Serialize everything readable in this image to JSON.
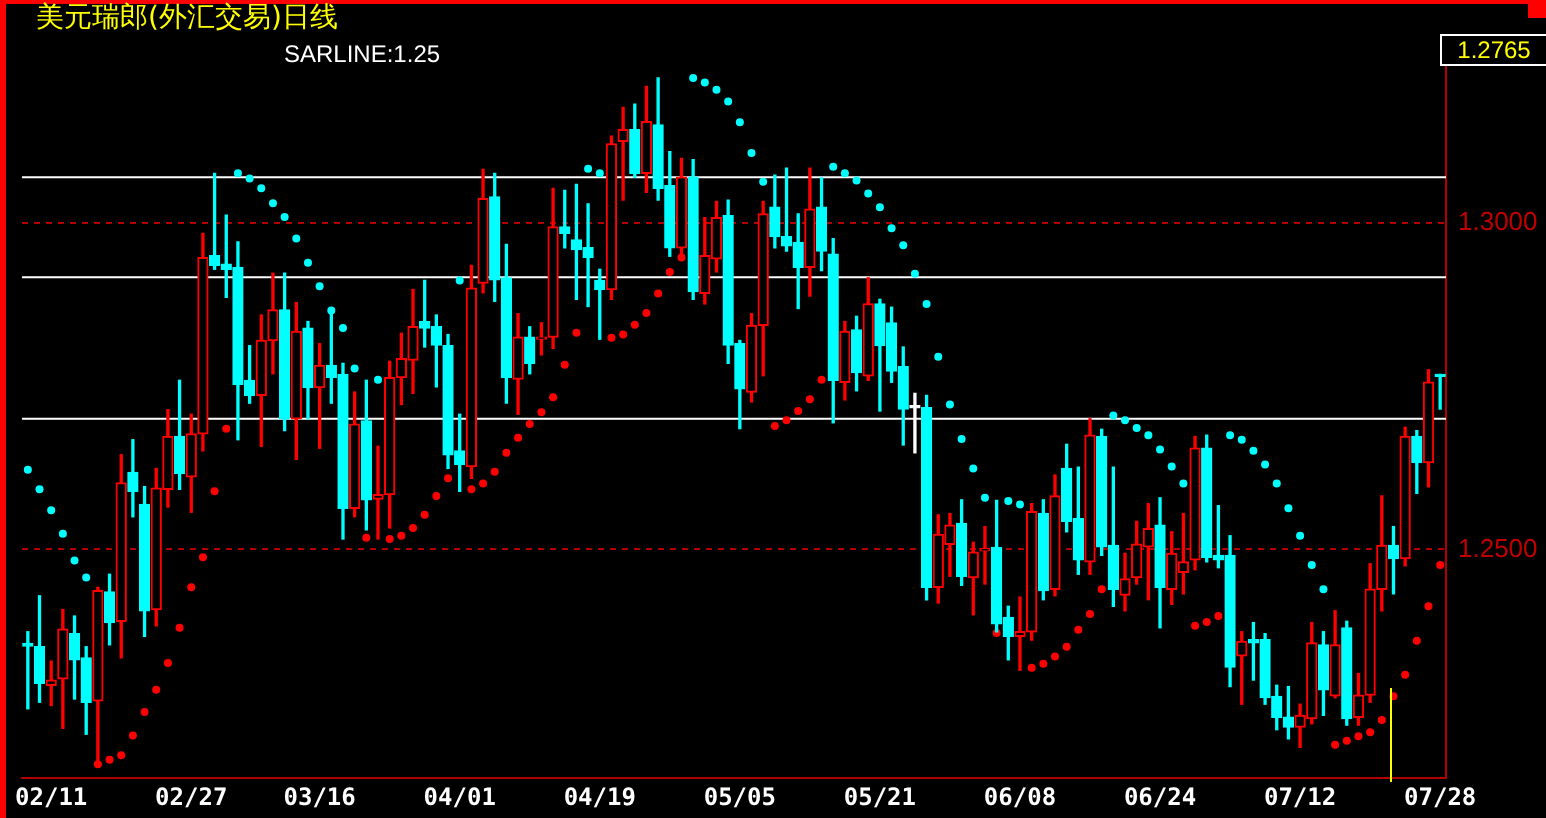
{
  "chart_data": {
    "type": "candlestick",
    "title": "美元瑞郎(外汇交易)日线",
    "categories": [
      null,
      null,
      "02/11",
      null,
      null,
      null,
      null,
      null,
      null,
      null,
      null,
      null,
      null,
      null,
      "02/27",
      null,
      null,
      null,
      null,
      null,
      null,
      null,
      null,
      null,
      null,
      "03/16",
      null,
      null,
      null,
      null,
      null,
      null,
      null,
      null,
      null,
      null,
      null,
      "04/01",
      null,
      null,
      null,
      null,
      null,
      null,
      null,
      null,
      null,
      null,
      null,
      "04/19",
      null,
      null,
      null,
      null,
      null,
      null,
      null,
      null,
      null,
      null,
      null,
      "05/05",
      null,
      null,
      null,
      null,
      null,
      null,
      null,
      null,
      null,
      null,
      null,
      "05/21",
      null,
      null,
      null,
      null,
      null,
      null,
      null,
      null,
      null,
      null,
      null,
      "06/08",
      null,
      null,
      null,
      null,
      null,
      null,
      null,
      null,
      null,
      null,
      null,
      "06/24",
      null,
      null,
      null,
      null,
      null,
      null,
      null,
      null,
      null,
      null,
      null,
      "07/12",
      null,
      null,
      null,
      null,
      null,
      null,
      null,
      null,
      null,
      null,
      null,
      "07/28"
    ],
    "ohlc": [
      [
        1.2356,
        1.2374,
        1.2256,
        1.2352
      ],
      [
        1.2351,
        1.2429,
        1.2266,
        1.2295
      ],
      [
        1.2292,
        1.2329,
        1.2261,
        1.23
      ],
      [
        1.2302,
        1.2408,
        1.2226,
        1.2378
      ],
      [
        1.2371,
        1.2398,
        1.2271,
        1.2331
      ],
      [
        1.2334,
        1.2351,
        1.2217,
        1.2266
      ],
      [
        1.2268,
        1.2442,
        1.2173,
        1.2437
      ],
      [
        1.2435,
        1.2462,
        1.2354,
        1.2388
      ],
      [
        1.239,
        1.2645,
        1.2334,
        1.2602
      ],
      [
        1.2618,
        1.2668,
        1.255,
        1.2589
      ],
      [
        1.2569,
        1.2596,
        1.2367,
        1.2406
      ],
      [
        1.2408,
        1.2624,
        1.2383,
        1.2594
      ],
      [
        1.2592,
        1.2714,
        1.2565,
        1.2673
      ],
      [
        1.2673,
        1.2759,
        1.2592,
        1.2616
      ],
      [
        1.2611,
        1.2707,
        1.2557,
        1.2677
      ],
      [
        1.2677,
        1.2984,
        1.2651,
        1.2947
      ],
      [
        1.295,
        1.3076,
        1.2929,
        1.2935
      ],
      [
        1.2937,
        1.3012,
        1.2886,
        1.2929
      ],
      [
        1.2932,
        1.2971,
        1.2668,
        1.2753
      ],
      [
        1.2759,
        1.2812,
        1.2724,
        1.2736
      ],
      [
        1.2736,
        1.2859,
        1.2658,
        1.282
      ],
      [
        1.282,
        1.2923,
        1.2769,
        1.2867
      ],
      [
        1.2867,
        1.2923,
        1.2682,
        1.27
      ],
      [
        1.27,
        1.2878,
        1.2638,
        1.2834
      ],
      [
        1.2839,
        1.2849,
        1.27,
        1.2748
      ],
      [
        1.2748,
        1.2815,
        1.2655,
        1.2782
      ],
      [
        1.2782,
        1.2864,
        1.2724,
        1.2763
      ],
      [
        1.2768,
        1.2785,
        1.2516,
        1.2563
      ],
      [
        1.2563,
        1.2741,
        1.255,
        1.2692
      ],
      [
        1.2697,
        1.2759,
        1.253,
        1.2576
      ],
      [
        1.2577,
        1.2658,
        1.2516,
        1.2584
      ],
      [
        1.2584,
        1.2788,
        1.2533,
        1.2763
      ],
      [
        1.2763,
        1.2831,
        1.2722,
        1.2792
      ],
      [
        1.279,
        1.2898,
        1.2739,
        1.2841
      ],
      [
        1.2849,
        1.2912,
        1.281,
        1.2839
      ],
      [
        1.2841,
        1.2859,
        1.2749,
        1.2813
      ],
      [
        1.2812,
        1.2829,
        1.2624,
        1.2645
      ],
      [
        1.2651,
        1.2707,
        1.2589,
        1.263
      ],
      [
        1.2627,
        1.2935,
        1.2609,
        1.29
      ],
      [
        1.2908,
        1.3082,
        1.2893,
        1.3037
      ],
      [
        1.304,
        1.3076,
        1.288,
        1.2913
      ],
      [
        1.2916,
        1.2967,
        1.2724,
        1.2763
      ],
      [
        1.2761,
        1.2861,
        1.2707,
        1.2825
      ],
      [
        1.2825,
        1.2841,
        1.2769,
        1.2785
      ],
      [
        1.2822,
        1.2847,
        1.2798,
        1.2825
      ],
      [
        1.2825,
        1.3053,
        1.2808,
        1.2994
      ],
      [
        1.2994,
        1.305,
        1.2962,
        1.2984
      ],
      [
        1.2974,
        1.3059,
        1.2883,
        1.2959
      ],
      [
        1.2962,
        1.3029,
        1.2872,
        1.2947
      ],
      [
        1.2912,
        1.2929,
        1.2822,
        1.2898
      ],
      [
        1.2898,
        1.3133,
        1.2883,
        1.3121
      ],
      [
        1.3125,
        1.3177,
        1.3035,
        1.3143
      ],
      [
        1.3143,
        1.3182,
        1.307,
        1.3076
      ],
      [
        1.3076,
        1.3209,
        1.3047,
        1.3155
      ],
      [
        1.315,
        1.3222,
        1.3035,
        1.3053
      ],
      [
        1.3057,
        1.3109,
        1.2949,
        1.2962
      ],
      [
        1.2962,
        1.3099,
        1.2952,
        1.307
      ],
      [
        1.307,
        1.3097,
        1.2883,
        1.2895
      ],
      [
        1.2892,
        1.3008,
        1.2876,
        1.295
      ],
      [
        1.2945,
        1.3033,
        1.2925,
        1.3008
      ],
      [
        1.3011,
        1.3035,
        1.2785,
        1.2813
      ],
      [
        1.2815,
        1.282,
        1.2685,
        1.2746
      ],
      [
        1.2741,
        1.2861,
        1.2726,
        1.2843
      ],
      [
        1.2843,
        1.3033,
        1.2766,
        1.3014
      ],
      [
        1.3024,
        1.3073,
        1.2962,
        1.2979
      ],
      [
        1.2979,
        1.3084,
        1.2957,
        1.2965
      ],
      [
        1.297,
        1.3014,
        1.2869,
        1.2932
      ],
      [
        1.2932,
        1.3084,
        1.2888,
        1.3021
      ],
      [
        1.3024,
        1.3069,
        1.2927,
        1.2957
      ],
      [
        1.2952,
        1.2976,
        1.2694,
        1.2759
      ],
      [
        1.2756,
        1.2849,
        1.2729,
        1.2834
      ],
      [
        1.2836,
        1.2857,
        1.2743,
        1.2771
      ],
      [
        1.2766,
        1.2916,
        1.2759,
        1.2876
      ],
      [
        1.2876,
        1.2883,
        1.2712,
        1.2812
      ],
      [
        1.2847,
        1.2871,
        1.2756,
        1.2773
      ],
      [
        1.278,
        1.281,
        1.266,
        1.2715
      ],
      [
        1.2717,
        1.2739,
        1.2648,
        1.2717
      ],
      [
        1.2717,
        1.2736,
        1.2423,
        1.2442
      ],
      [
        1.2442,
        1.2553,
        1.2418,
        1.2523
      ],
      [
        1.2508,
        1.2555,
        1.2459,
        1.2537
      ],
      [
        1.254,
        1.2576,
        1.2445,
        1.2459
      ],
      [
        1.2457,
        1.2511,
        1.24,
        1.2496
      ],
      [
        1.2498,
        1.2535,
        1.2447,
        1.2501
      ],
      [
        1.2503,
        1.2575,
        1.2374,
        1.2386
      ],
      [
        1.2396,
        1.2413,
        1.2331,
        1.2367
      ],
      [
        1.2367,
        1.2427,
        1.2315,
        1.2374
      ],
      [
        1.2374,
        1.257,
        1.2361,
        1.2558
      ],
      [
        1.2555,
        1.2576,
        1.2423,
        1.2437
      ],
      [
        1.2439,
        1.2614,
        1.2429,
        1.2582
      ],
      [
        1.2624,
        1.2661,
        1.2527,
        1.2543
      ],
      [
        1.2547,
        1.2626,
        1.2462,
        1.2484
      ],
      [
        1.2481,
        1.27,
        1.2462,
        1.2675
      ],
      [
        1.2673,
        1.2684,
        1.2491,
        1.2504
      ],
      [
        1.2506,
        1.2626,
        1.2413,
        1.2439
      ],
      [
        1.243,
        1.2494,
        1.2406,
        1.2455
      ],
      [
        1.2457,
        1.2543,
        1.2447,
        1.2508
      ],
      [
        1.2504,
        1.257,
        1.2423,
        1.2532
      ],
      [
        1.2537,
        1.2579,
        1.238,
        1.2442
      ],
      [
        1.2439,
        1.2527,
        1.2416,
        1.2494
      ],
      [
        1.2465,
        1.2555,
        1.2432,
        1.2481
      ],
      [
        1.2484,
        1.2673,
        1.2469,
        1.2655
      ],
      [
        1.2655,
        1.2675,
        1.2481,
        1.2488
      ],
      [
        1.2491,
        1.2567,
        1.2472,
        1.2484
      ],
      [
        1.2491,
        1.2521,
        1.229,
        1.232
      ],
      [
        1.2337,
        1.2374,
        1.2263,
        1.2359
      ],
      [
        1.2362,
        1.2388,
        1.23,
        1.2357
      ],
      [
        1.2362,
        1.2371,
        1.2263,
        1.2273
      ],
      [
        1.2275,
        1.2292,
        1.2224,
        1.2243
      ],
      [
        1.2243,
        1.229,
        1.221,
        1.2228
      ],
      [
        1.2228,
        1.2263,
        1.2197,
        1.2246
      ],
      [
        1.2241,
        1.2388,
        1.2233,
        1.2357
      ],
      [
        1.2354,
        1.2374,
        1.2246,
        1.2285
      ],
      [
        1.2276,
        1.2406,
        1.2273,
        1.2354
      ],
      [
        1.238,
        1.239,
        1.2231,
        1.2241
      ],
      [
        1.2243,
        1.231,
        1.2231,
        1.2277
      ],
      [
        1.2277,
        1.2478,
        1.2266,
        1.2439
      ],
      [
        1.2439,
        1.2582,
        1.2406,
        1.2506
      ],
      [
        1.2506,
        1.2535,
        1.2432,
        1.2486
      ],
      [
        1.2486,
        1.2687,
        1.2475,
        1.2673
      ],
      [
        1.2673,
        1.2682,
        1.2586,
        1.2633
      ],
      [
        1.2633,
        1.2775,
        1.2596,
        1.2756
      ],
      [
        1.2768,
        1.2768,
        1.2715,
        1.2765
      ]
    ],
    "series": [
      {
        "type": "scatter",
        "color": "#ff0000",
        "values": [
          null,
          null,
          null,
          null,
          null,
          null,
          1.2171,
          1.2178,
          1.2185,
          1.2215,
          1.2251,
          1.2285,
          1.2326,
          1.238,
          1.2442,
          1.2488,
          1.2589,
          1.2685,
          null,
          null,
          null,
          null,
          null,
          null,
          null,
          null,
          null,
          null,
          null,
          1.2518,
          null,
          1.2516,
          1.2521,
          1.2533,
          1.2553,
          1.2582,
          1.2609,
          null,
          1.2592,
          1.2601,
          1.2619,
          1.2648,
          1.2671,
          1.2692,
          1.271,
          1.2733,
          1.2783,
          1.2832,
          null,
          null,
          1.2824,
          1.2829,
          1.2844,
          1.2862,
          1.2892,
          1.2925,
          1.2947,
          null,
          null,
          null,
          null,
          null,
          null,
          null,
          1.2689,
          1.2698,
          1.2712,
          1.273,
          1.276,
          null,
          null,
          null,
          null,
          null,
          null,
          null,
          null,
          null,
          null,
          null,
          null,
          null,
          null,
          1.2372,
          null,
          null,
          1.2319,
          1.2325,
          1.2336,
          1.2351,
          1.2377,
          1.2401,
          1.2439,
          null,
          null,
          null,
          null,
          null,
          null,
          null,
          1.2383,
          1.2389,
          1.2398,
          null,
          null,
          null,
          null,
          null,
          null,
          null,
          null,
          null,
          1.2201,
          1.2207,
          1.2214,
          1.222,
          1.2239,
          1.2275,
          1.2308,
          1.236,
          1.2413,
          1.2476
        ]
      },
      {
        "type": "scatter",
        "color": "#00ffff",
        "values": [
          1.2622,
          1.2592,
          1.256,
          1.2524,
          1.2483,
          1.2457,
          null,
          null,
          null,
          null,
          null,
          null,
          null,
          null,
          null,
          null,
          null,
          null,
          1.3076,
          1.3068,
          1.3053,
          1.303,
          1.3009,
          1.2976,
          1.2939,
          1.2903,
          1.2866,
          1.2839,
          1.2777,
          null,
          1.276,
          null,
          null,
          null,
          null,
          null,
          null,
          1.2912,
          null,
          null,
          null,
          null,
          null,
          null,
          null,
          null,
          null,
          null,
          1.3083,
          1.3076,
          null,
          null,
          null,
          null,
          null,
          null,
          null,
          1.3222,
          1.3215,
          1.3204,
          1.3186,
          1.3154,
          1.3107,
          1.3063,
          null,
          null,
          null,
          null,
          null,
          1.3086,
          1.3076,
          1.3065,
          1.3045,
          1.3024,
          1.2992,
          1.2966,
          1.2922,
          1.2876,
          1.2795,
          1.2722,
          1.2669,
          1.2624,
          1.2579,
          null,
          1.2574,
          1.2569,
          null,
          null,
          null,
          null,
          null,
          null,
          null,
          1.2705,
          1.2698,
          1.2686,
          1.2675,
          1.2653,
          1.2627,
          1.2601,
          null,
          null,
          null,
          1.2675,
          1.2668,
          1.2651,
          1.263,
          1.2601,
          1.2563,
          1.2521,
          1.2476,
          1.2439,
          null,
          null,
          null,
          null,
          null,
          null,
          null,
          null,
          null,
          null
        ]
      }
    ],
    "marker": "circle",
    "ylim": [
      1.215,
      1.3244
    ],
    "yticks": [
      {
        "value": 1.25,
        "label": "1.2500"
      },
      {
        "value": 1.3,
        "label": "1.3000"
      }
    ],
    "grid": "y",
    "ref_lines": [
      {
        "axis": "y",
        "value": 1.307,
        "color": "#ffffff"
      },
      {
        "axis": "y",
        "value": 1.2917,
        "color": "#ffffff"
      },
      {
        "axis": "y",
        "value": 1.27,
        "color": "#ffffff"
      }
    ],
    "annotations": [
      "SARLINE:1.25",
      "1.2765"
    ]
  }
}
